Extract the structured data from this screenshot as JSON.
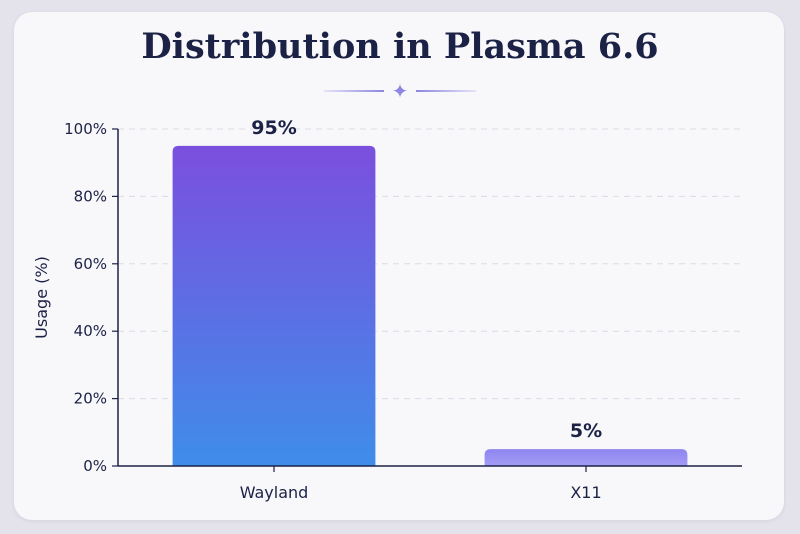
{
  "chart_data": {
    "type": "bar",
    "title": "Distribution in Plasma 6.6",
    "ylabel": "Usage (%)",
    "xlabel": "",
    "categories": [
      "Wayland",
      "X11"
    ],
    "values": [
      95,
      5
    ],
    "value_labels": [
      "95%",
      "5%"
    ],
    "ylim": [
      0,
      100
    ],
    "yticks": [
      0,
      20,
      40,
      60,
      80,
      100
    ],
    "ytick_labels": [
      "0%",
      "20%",
      "40%",
      "60%",
      "80%",
      "100%"
    ],
    "grid": true,
    "legend": "none",
    "colors": {
      "wayland_top": "#7b4fde",
      "wayland_bottom": "#3f8dea",
      "x11_top": "#8e86f0",
      "x11_bottom": "#a39cf4",
      "axis": "#1c2246",
      "grid": "#dcdbe6",
      "title": "#1c2246"
    }
  },
  "ornament": {
    "icon": "sparkle-icon",
    "glyph": "✦"
  }
}
